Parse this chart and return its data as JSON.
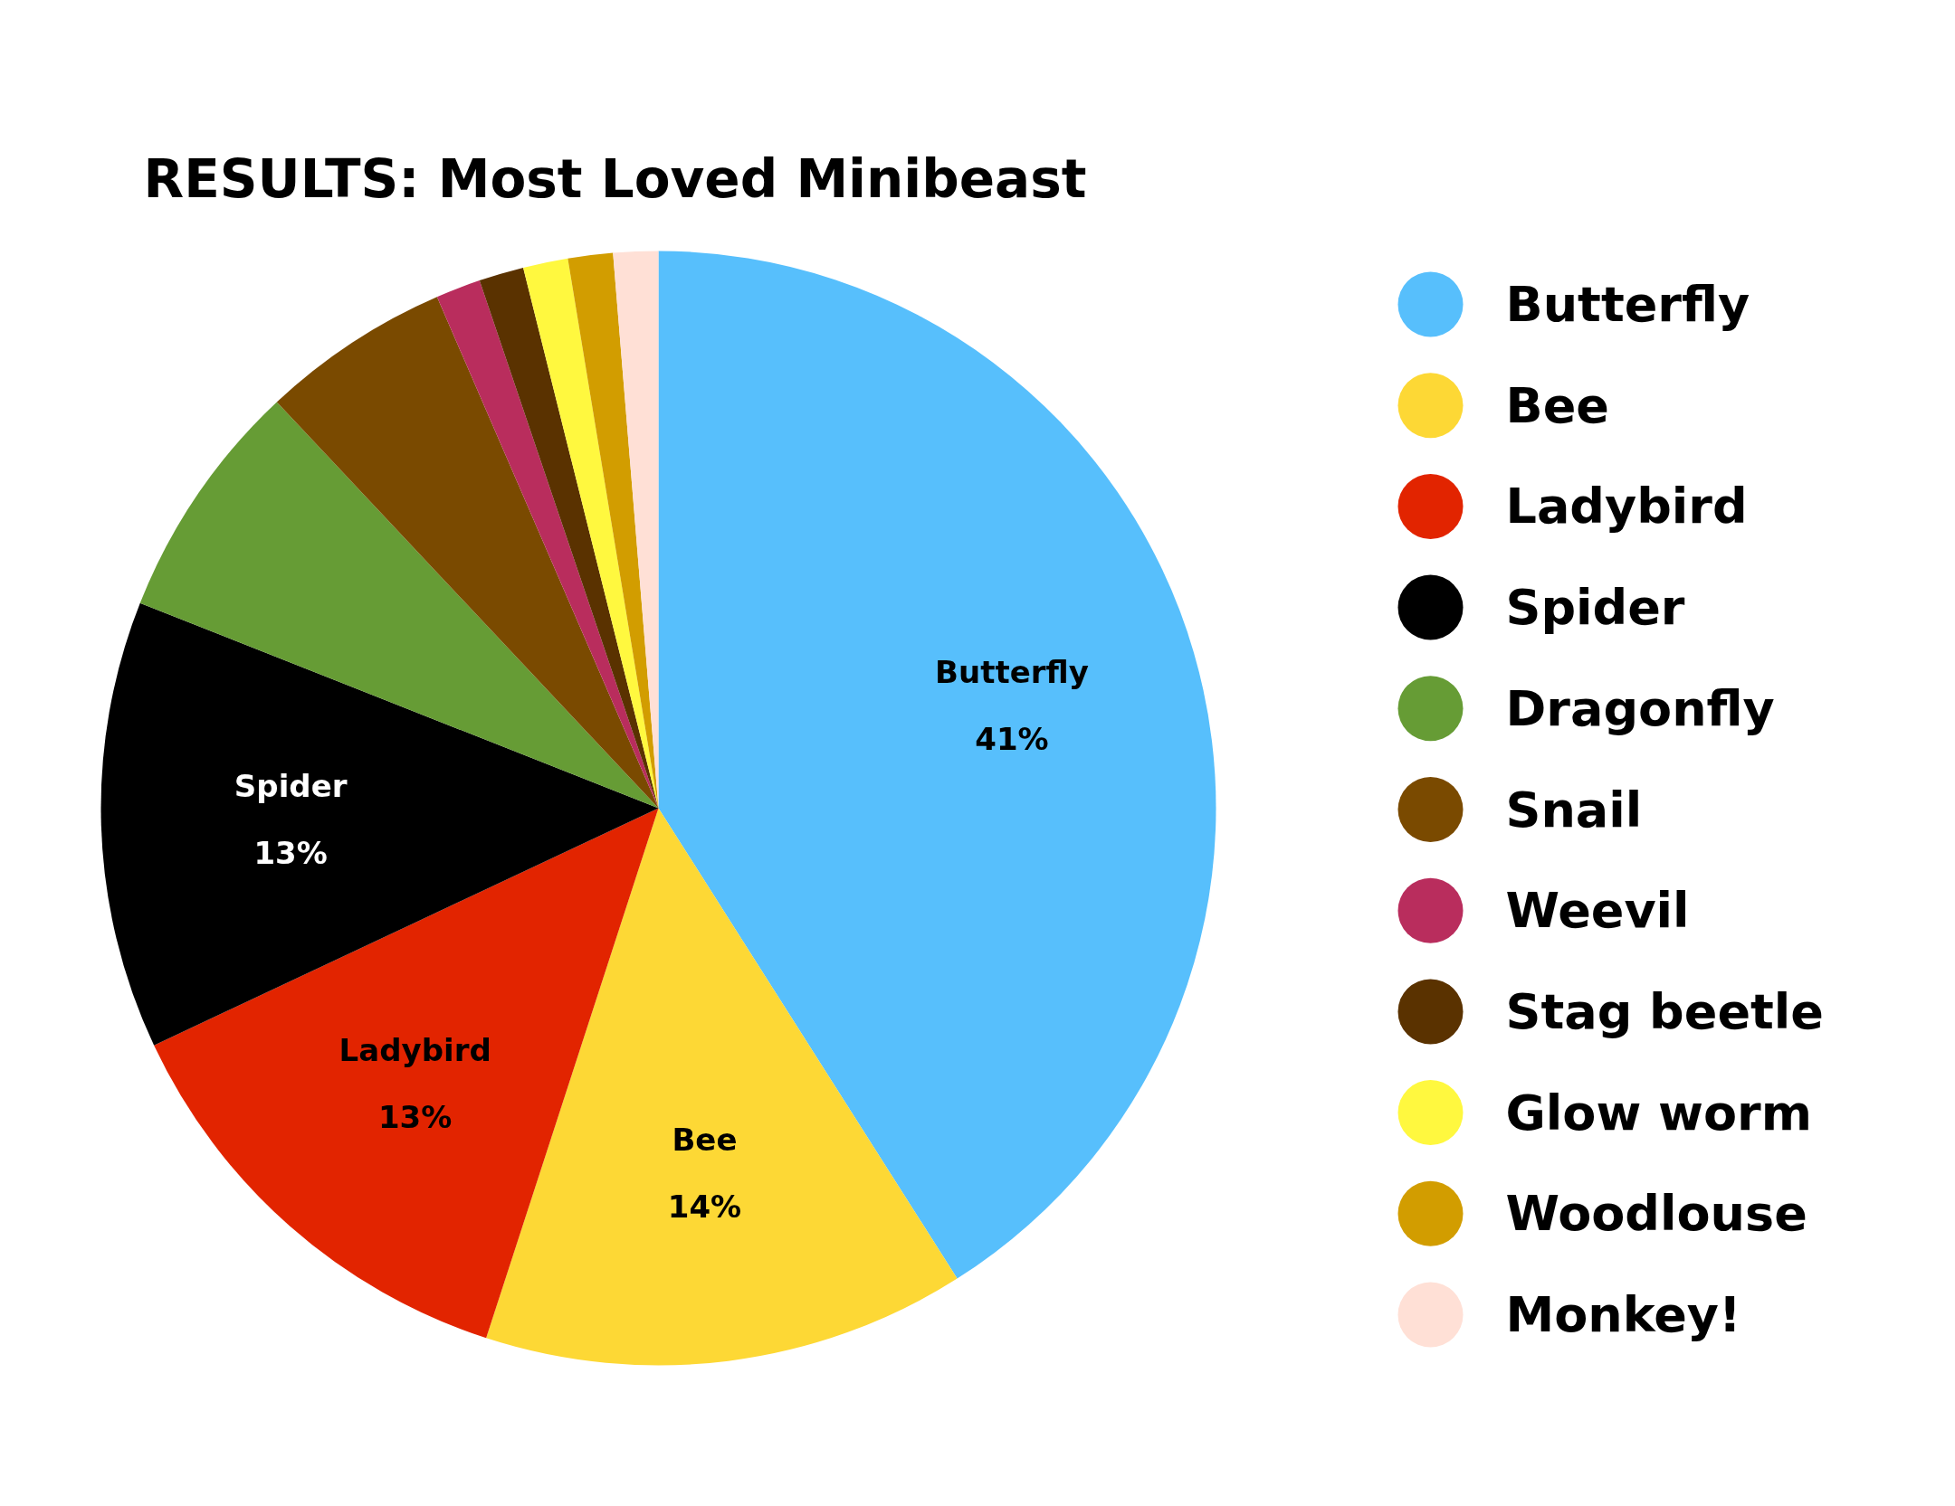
{
  "chart_data": {
    "type": "pie",
    "title": "RESULTS: Most Loved Minibeast",
    "categories": [
      "Butterfly",
      "Bee",
      "Ladybird",
      "Spider",
      "Dragonfly",
      "Snail",
      "Weevil",
      "Stag beetle",
      "Glow worm",
      "Woodlouse",
      "Monkey!"
    ],
    "values": [
      41,
      14,
      13,
      13,
      7,
      5.5,
      1.3,
      1.3,
      1.3,
      1.3,
      1.3
    ],
    "colors": [
      "#57bffc",
      "#fdd835",
      "#e22400",
      "#000000",
      "#669c35",
      "#7a4a00",
      "#b92d5d",
      "#5a3200",
      "#fff83f",
      "#d29d00",
      "#ffe0d6"
    ],
    "value_labels": [
      "41%",
      "14%",
      "13%",
      "13%",
      null,
      null,
      null,
      null,
      null,
      null,
      null
    ],
    "legend": "right"
  }
}
